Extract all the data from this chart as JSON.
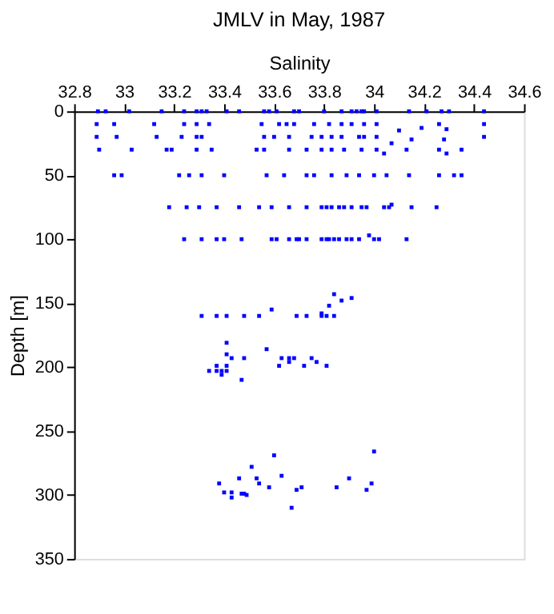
{
  "chart_data": {
    "type": "scatter",
    "title": "JMLV in May, 1987",
    "xlabel": "Salinity",
    "ylabel": "Depth [m]",
    "xlim": [
      32.8,
      34.6
    ],
    "xticks": [
      32.8,
      33,
      33.2,
      33.4,
      33.6,
      33.8,
      34,
      34.2,
      34.4,
      34.6
    ],
    "ylim": [
      350,
      0
    ],
    "yticks": [
      0,
      50,
      100,
      150,
      200,
      250,
      300,
      350
    ],
    "grid": false,
    "legend": false,
    "marker": "square",
    "series": [
      {
        "color": "#0000ff",
        "x": [
          32.895,
          32.926,
          33.02,
          33.15,
          33.24,
          33.29,
          33.31,
          33.33,
          33.41,
          33.46,
          33.56,
          33.58,
          33.61,
          33.68,
          33.7,
          33.8,
          33.87,
          33.91,
          33.93,
          33.95,
          33.96,
          34.01,
          34.14,
          34.21,
          34.27,
          34.3,
          34.44,
          32.89,
          32.96,
          33.12,
          33.24,
          33.29,
          33.34,
          33.55,
          33.62,
          33.65,
          33.68,
          33.76,
          33.82,
          33.87,
          33.91,
          33.96,
          34.01,
          34.1,
          34.19,
          34.26,
          34.29,
          34.44,
          32.89,
          32.97,
          33.13,
          33.23,
          33.29,
          33.31,
          33.56,
          33.6,
          33.66,
          33.75,
          33.79,
          33.83,
          33.87,
          33.94,
          33.96,
          34.01,
          34.07,
          34.15,
          34.28,
          34.44,
          32.9,
          33.03,
          33.17,
          33.19,
          33.29,
          33.35,
          33.53,
          33.56,
          33.66,
          33.73,
          33.79,
          33.83,
          33.88,
          33.95,
          34.01,
          34.04,
          34.13,
          34.26,
          34.29,
          34.35,
          32.96,
          32.99,
          33.22,
          33.26,
          33.31,
          33.4,
          33.57,
          33.64,
          33.73,
          33.76,
          33.83,
          33.89,
          33.94,
          34.0,
          34.05,
          34.14,
          34.26,
          34.32,
          34.35,
          33.18,
          33.25,
          33.3,
          33.37,
          33.46,
          33.54,
          33.59,
          33.66,
          33.73,
          33.79,
          33.81,
          33.83,
          33.86,
          33.88,
          33.91,
          33.95,
          33.97,
          34.04,
          34.06,
          34.07,
          34.15,
          34.25,
          33.24,
          33.31,
          33.37,
          33.4,
          33.47,
          33.59,
          33.61,
          33.66,
          33.69,
          33.7,
          33.73,
          33.79,
          33.81,
          33.82,
          33.84,
          33.86,
          33.89,
          33.91,
          33.94,
          33.98,
          34.0,
          34.02,
          34.13,
          33.84,
          33.91,
          33.87,
          33.82,
          33.59,
          33.31,
          33.37,
          33.41,
          33.48,
          33.54,
          33.69,
          33.73,
          33.79,
          33.81,
          33.84,
          33.79,
          33.41,
          33.57,
          33.41,
          33.43,
          33.48,
          33.63,
          33.66,
          33.68,
          33.75,
          33.66,
          33.77,
          33.37,
          33.41,
          33.62,
          33.72,
          33.81,
          33.34,
          33.37,
          33.39,
          33.41,
          33.39,
          33.47,
          34.0,
          33.6,
          33.51,
          33.63,
          33.46,
          33.53,
          33.9,
          33.38,
          33.54,
          33.99,
          33.58,
          33.71,
          33.85,
          33.69,
          33.97,
          33.4,
          33.43,
          33.47,
          33.48,
          33.49,
          33.43,
          33.67
        ],
        "values": [
          0,
          0,
          0,
          0,
          0,
          0,
          0,
          0,
          0,
          0,
          0,
          0,
          0,
          0,
          0,
          0,
          0,
          0,
          0,
          0,
          0,
          0,
          0,
          0,
          0,
          0,
          0,
          10,
          10,
          10,
          10,
          10,
          10,
          10,
          10,
          10,
          10,
          10,
          10,
          10,
          10,
          10,
          10,
          15,
          13,
          10,
          14,
          10,
          20,
          20,
          20,
          20,
          20,
          20,
          20,
          20,
          20,
          20,
          20,
          20,
          20,
          20,
          20,
          20,
          25,
          22,
          22,
          20,
          30,
          30,
          30,
          30,
          30,
          30,
          30,
          30,
          30,
          30,
          30,
          30,
          30,
          30,
          30,
          33,
          30,
          30,
          33,
          30,
          50,
          50,
          50,
          50,
          50,
          50,
          50,
          50,
          50,
          50,
          50,
          50,
          50,
          50,
          50,
          50,
          50,
          50,
          50,
          75,
          75,
          75,
          75,
          75,
          75,
          75,
          75,
          75,
          75,
          75,
          75,
          75,
          75,
          75,
          75,
          75,
          75,
          75,
          73,
          75,
          75,
          100,
          100,
          100,
          100,
          100,
          100,
          100,
          100,
          100,
          100,
          100,
          100,
          100,
          100,
          100,
          100,
          100,
          100,
          100,
          97,
          100,
          100,
          100,
          143,
          146,
          148,
          152,
          155,
          160,
          160,
          160,
          160,
          160,
          160,
          160,
          160,
          160,
          160,
          158,
          181,
          186,
          190,
          193,
          193,
          193,
          193,
          193,
          193,
          196,
          196,
          199,
          199,
          199,
          199,
          199,
          203,
          203,
          203,
          203,
          206,
          210,
          266,
          269,
          278,
          285,
          287,
          287,
          287,
          291,
          291,
          291,
          294,
          294,
          294,
          296,
          296,
          298,
          298,
          299,
          299,
          300,
          302,
          310
        ]
      }
    ]
  }
}
